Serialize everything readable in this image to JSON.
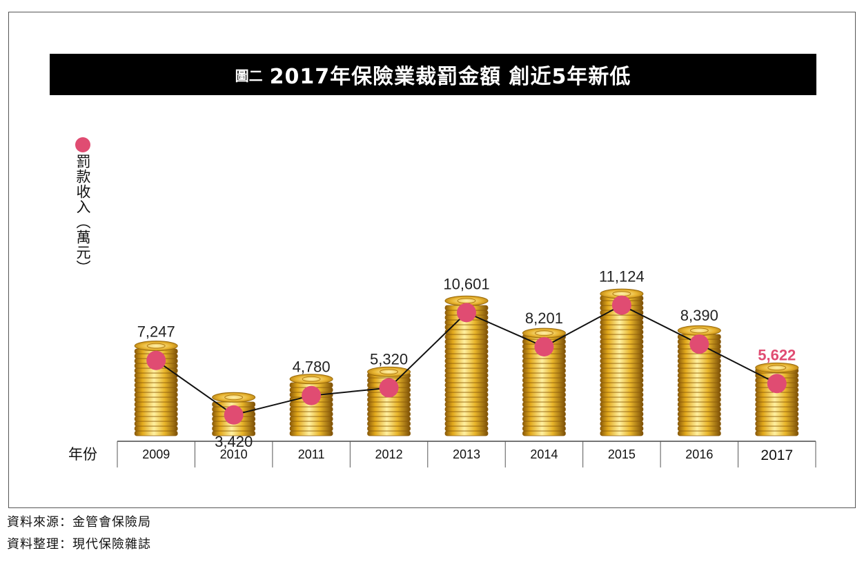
{
  "title": {
    "prefix": "圖二",
    "main": "2017年保險業裁罰金額 創近5年新低"
  },
  "ylabel": "罰款收入（萬元）",
  "source_lines": [
    "資料來源：金管會保險局",
    "資料整理：現代保險雜誌"
  ],
  "colors": {
    "marker": "#e04c72",
    "highlight_label": "#e04c72",
    "line": "#111111",
    "coin_gold": "#d9a520"
  },
  "chart_data": {
    "type": "line",
    "xlabel": "年份",
    "categories": [
      "2009",
      "2010",
      "2011",
      "2012",
      "2013",
      "2014",
      "2015",
      "2016",
      "2017"
    ],
    "values": [
      7247,
      3420,
      4780,
      5320,
      10601,
      8201,
      11124,
      8390,
      5622
    ],
    "labels": [
      "7,247",
      "3,420",
      "4,780",
      "5,320",
      "10,601",
      "8,201",
      "11,124",
      "8,390",
      "5,622"
    ],
    "highlight_index": 8,
    "decoration": "coin-stacks"
  }
}
